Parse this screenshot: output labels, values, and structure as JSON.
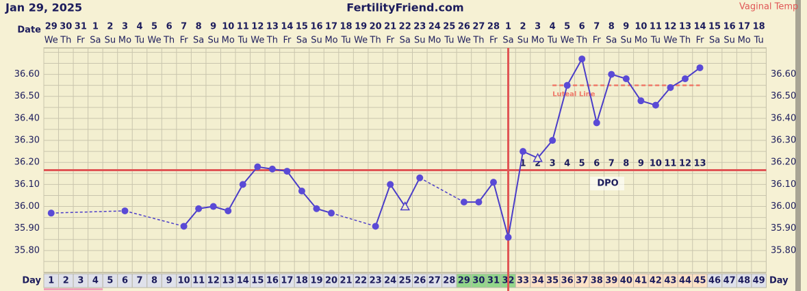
{
  "chart_data": {
    "type": "line",
    "title": "Jan 29, 2025",
    "subtitle": "FertilityFriend.com",
    "annotation": "Vaginal Temp",
    "date_label": "Date",
    "day_label": "Day",
    "categories": [
      "1",
      "2",
      "3",
      "4",
      "5",
      "6",
      "7",
      "8",
      "9",
      "10",
      "11",
      "12",
      "13",
      "14",
      "15",
      "16",
      "17",
      "18",
      "19",
      "20",
      "21",
      "22",
      "23",
      "24",
      "25",
      "26",
      "27",
      "28",
      "29",
      "30",
      "31",
      "32",
      "33",
      "34",
      "35",
      "36",
      "37",
      "38",
      "39",
      "40",
      "41",
      "42",
      "43",
      "44",
      "45",
      "46",
      "47",
      "48",
      "49"
    ],
    "dates": [
      "29",
      "30",
      "31",
      "1",
      "2",
      "3",
      "4",
      "5",
      "6",
      "7",
      "8",
      "9",
      "10",
      "11",
      "12",
      "13",
      "14",
      "15",
      "16",
      "17",
      "18",
      "19",
      "20",
      "21",
      "22",
      "23",
      "24",
      "25",
      "26",
      "27",
      "28",
      "1",
      "2",
      "3",
      "4",
      "5",
      "6",
      "7",
      "8",
      "9",
      "10",
      "11",
      "12",
      "13",
      "14",
      "15",
      "16",
      "17",
      "18"
    ],
    "weekdays": [
      "We",
      "Th",
      "Fr",
      "Sa",
      "Su",
      "Mo",
      "Tu",
      "We",
      "Th",
      "Fr",
      "Sa",
      "Su",
      "Mo",
      "Tu",
      "We",
      "Th",
      "Fr",
      "Sa",
      "Su",
      "Mo",
      "Tu",
      "We",
      "Th",
      "Fr",
      "Sa",
      "Su",
      "Mo",
      "Tu",
      "We",
      "Th",
      "Fr",
      "Sa",
      "Su",
      "Mo",
      "Tu",
      "We",
      "Th",
      "Fr",
      "Sa",
      "Su",
      "Mo",
      "Tu",
      "We",
      "Th",
      "Fr",
      "Sa",
      "Su",
      "Mo",
      "Tu"
    ],
    "series": [
      {
        "name": "Temperature",
        "color": "#4a3cc8",
        "values": [
          35.97,
          null,
          null,
          null,
          null,
          35.98,
          null,
          null,
          null,
          35.91,
          35.99,
          36.0,
          35.98,
          36.1,
          36.18,
          36.17,
          36.16,
          36.07,
          35.99,
          35.97,
          null,
          null,
          35.91,
          36.1,
          36.0,
          36.13,
          null,
          null,
          36.02,
          36.02,
          36.11,
          35.86,
          36.25,
          36.22,
          36.3,
          36.55,
          36.67,
          36.38,
          36.6,
          36.58,
          36.48,
          36.46,
          36.54,
          36.58,
          36.63,
          null,
          null,
          null,
          null
        ]
      }
    ],
    "open_marker_days": [
      25,
      34
    ],
    "ylim": [
      35.7,
      36.72
    ],
    "yticks": [
      {
        "value": 35.8,
        "label": "35.80"
      },
      {
        "value": 35.9,
        "label": "35.90"
      },
      {
        "value": 36.0,
        "label": "36.00"
      },
      {
        "value": 36.1,
        "label": "36.10"
      },
      {
        "value": 36.2,
        "label": "36.20"
      },
      {
        "value": 36.3,
        "label": "36.30"
      },
      {
        "value": 36.4,
        "label": "36.40"
      },
      {
        "value": 36.5,
        "label": "36.50"
      },
      {
        "value": 36.6,
        "label": "36.60"
      }
    ],
    "minor_yticks": [
      35.75,
      35.85,
      35.95,
      36.05,
      36.15,
      36.25,
      36.35,
      36.45,
      36.55,
      36.65,
      36.7
    ],
    "grid": true,
    "coverline": {
      "value": 36.165,
      "color": "#e05555"
    },
    "ovulation_day": 32,
    "dpo_title": "DPO",
    "dpo_labels": [
      1,
      2,
      3,
      4,
      5,
      6,
      7,
      8,
      9,
      10,
      11,
      12,
      13
    ],
    "luteal_line": {
      "label": "Luteal Line",
      "value": 36.55,
      "from_day": 35,
      "to_day": 45,
      "color": "#f07a6a"
    },
    "fertile_range": [
      29,
      32
    ],
    "luteal_range": [
      33,
      45
    ],
    "menses_range": [
      1,
      4
    ]
  }
}
